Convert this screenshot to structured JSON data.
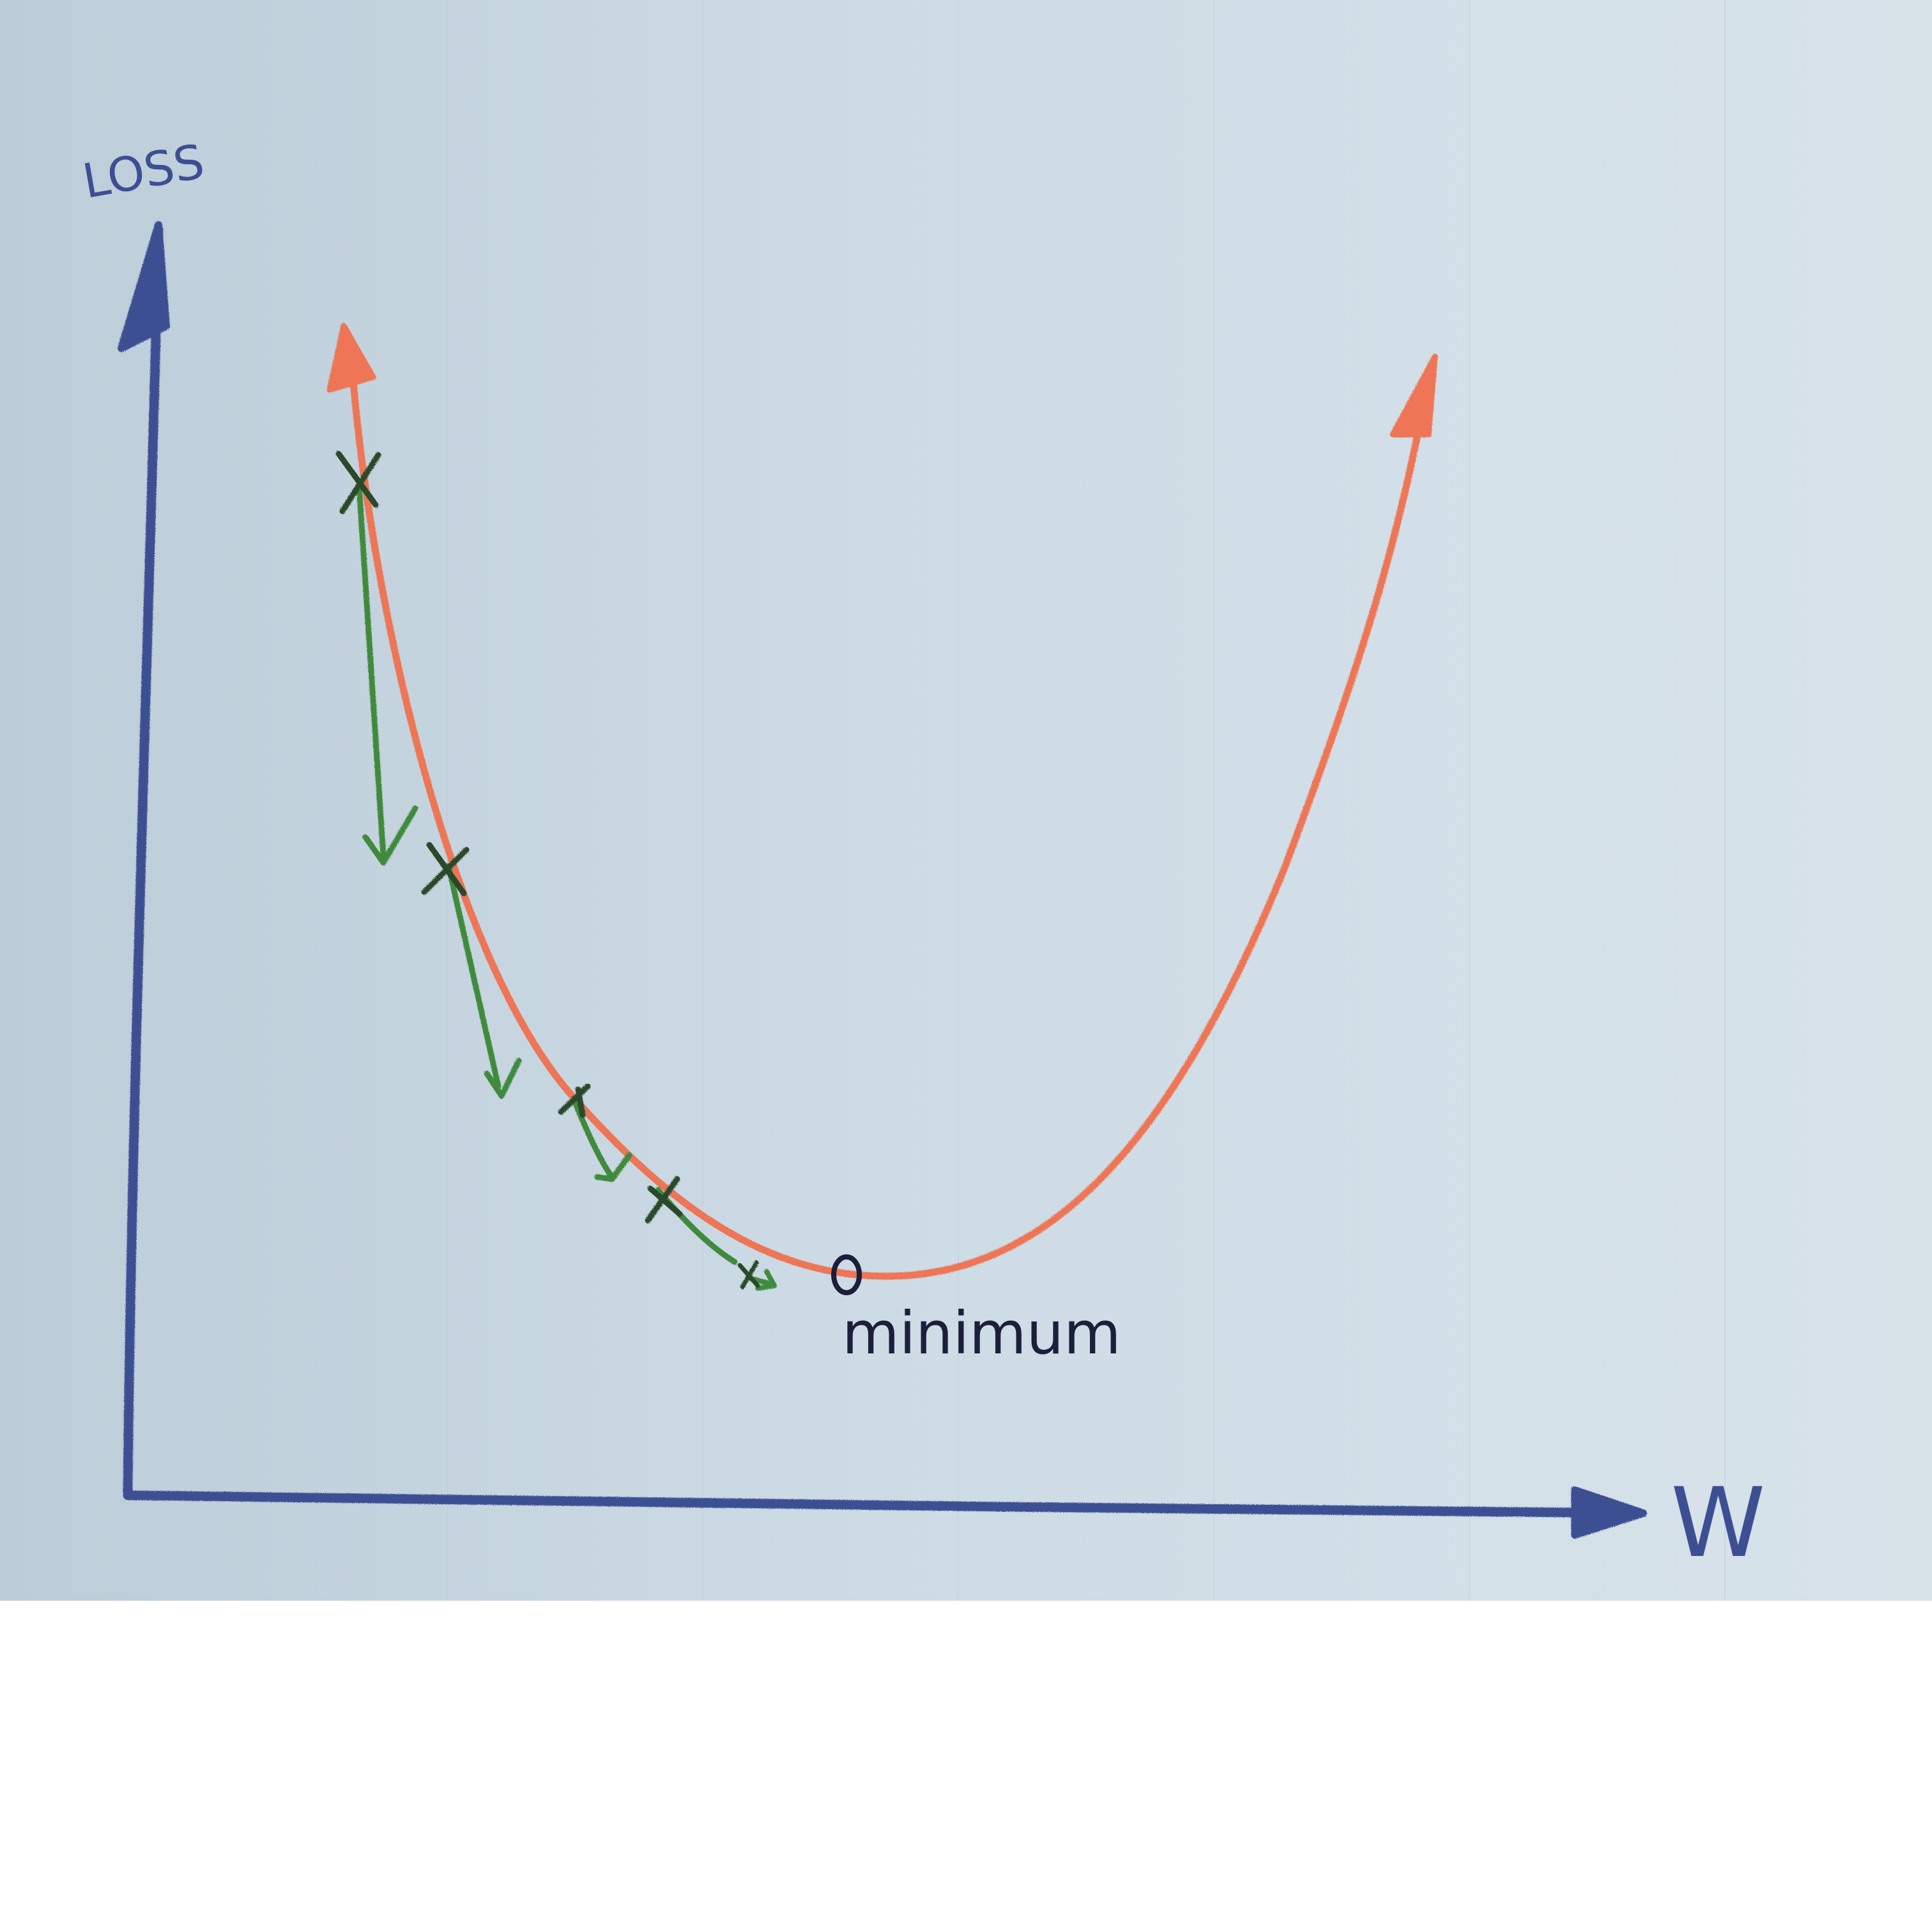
{
  "labels": {
    "y_axis": "LOSS",
    "x_axis": "W",
    "minimum": "minimum"
  },
  "colors": {
    "paper": "#c8d6e0",
    "axis": "#3c4f93",
    "curve": "#ee7455",
    "steps": "#3f8a3c",
    "step_marks": "#2c4a2a",
    "minimum_text": "#1b1f3c"
  }
}
